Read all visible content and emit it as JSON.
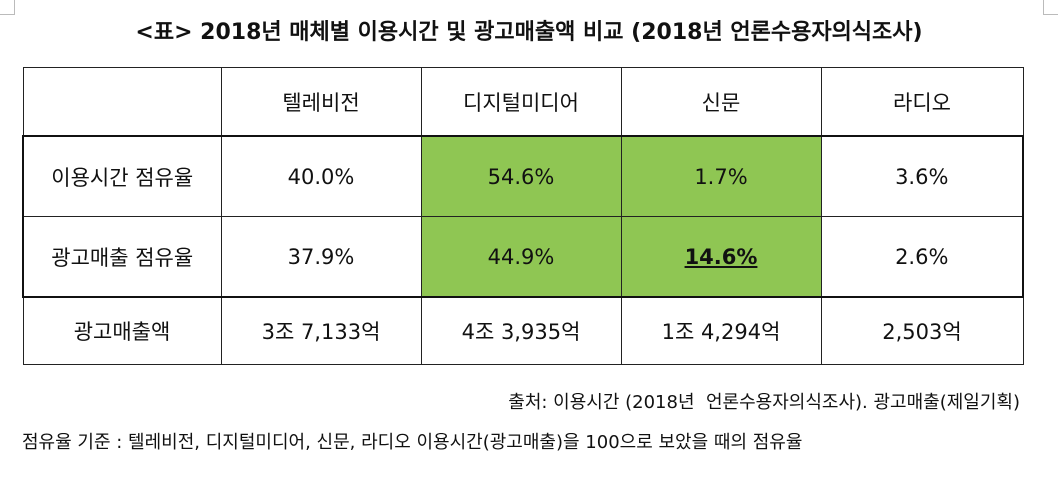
{
  "title": "<표> 2018년 매체별 이용시간 및 광고매출액 비교 (2018년 언론수용자의식조사)",
  "table": {
    "header": [
      "텔레비전",
      "디지털미디어",
      "신문",
      "라디오"
    ],
    "rows": [
      [
        "이용시간 점유율",
        "40.0%",
        "54.6%",
        "1.7%",
        "3.6%"
      ],
      [
        "광고매출 점유율",
        "37.9%",
        "44.9%",
        "14.6%",
        "2.6%"
      ],
      [
        "광고매출액",
        "3조 7,133억",
        "4조 3,935억",
        "1조 4,294억",
        "2,503억"
      ]
    ]
  },
  "notes": [
    "출처: 이용시간 (2018년  언론수용자의식조사). 광고매출(제일기획)",
    "점유율 기준 : 텔레비전, 디지털미디어, 신문, 라디오 이용시간(광고매출)을 100으로 보았을 때의 점유율"
  ]
}
